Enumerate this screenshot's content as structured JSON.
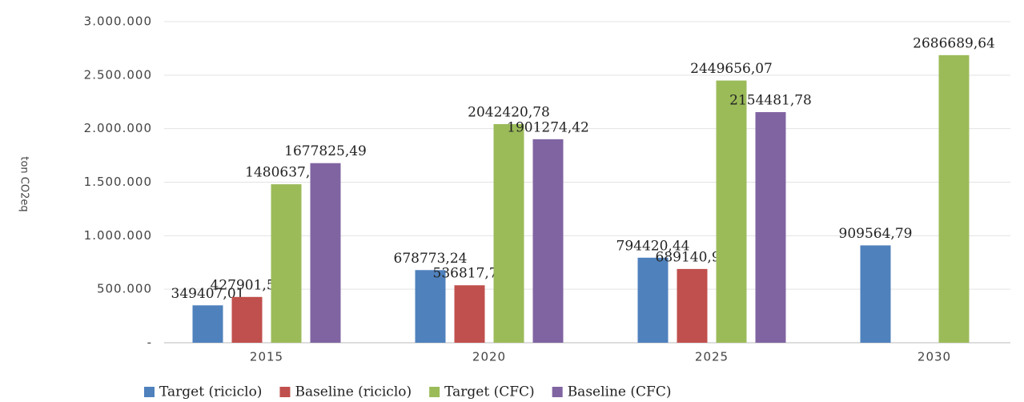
{
  "chart_data": {
    "type": "bar",
    "y_label": "ton CO2eq",
    "categories": [
      "2015",
      "2020",
      "2025",
      "2030"
    ],
    "series": [
      {
        "name": "Target (riciclo)",
        "color": "#4f81bd",
        "values": [
          349407.01,
          678773.24,
          794420.44,
          909564.79
        ],
        "value_labels": [
          "349407,01",
          "678773,24",
          "794420,44",
          "909564,79"
        ]
      },
      {
        "name": "Baseline (riciclo)",
        "color": "#c0504d",
        "values": [
          427901.59,
          536817.72,
          689140.96,
          null
        ],
        "value_labels": [
          "427901,59",
          "536817,72",
          "689140,96",
          null
        ]
      },
      {
        "name": "Target (CFC)",
        "color": "#9bbb59",
        "values": [
          1480637.58,
          2042420.78,
          2449656.07,
          2686689.64
        ],
        "value_labels": [
          "1480637,58",
          "2042420,78",
          "2449656,07",
          "2686689,64"
        ]
      },
      {
        "name": "Baseline (CFC)",
        "color": "#8064a2",
        "values": [
          1677825.49,
          1901274.42,
          2154481.78,
          null
        ],
        "value_labels": [
          "1677825,49",
          "1901274,42",
          "2154481,78",
          null
        ]
      }
    ],
    "ylim": [
      0,
      3000000
    ],
    "yticks": [
      {
        "value": 0,
        "label": "-"
      },
      {
        "value": 500000,
        "label": "500.000"
      },
      {
        "value": 1000000,
        "label": "1.000.000"
      },
      {
        "value": 1500000,
        "label": "1.500.000"
      },
      {
        "value": 2000000,
        "label": "2.000.000"
      },
      {
        "value": 2500000,
        "label": "2.500.000"
      },
      {
        "value": 3000000,
        "label": "3.000.000"
      }
    ],
    "grid": true,
    "legend": "bottom"
  }
}
